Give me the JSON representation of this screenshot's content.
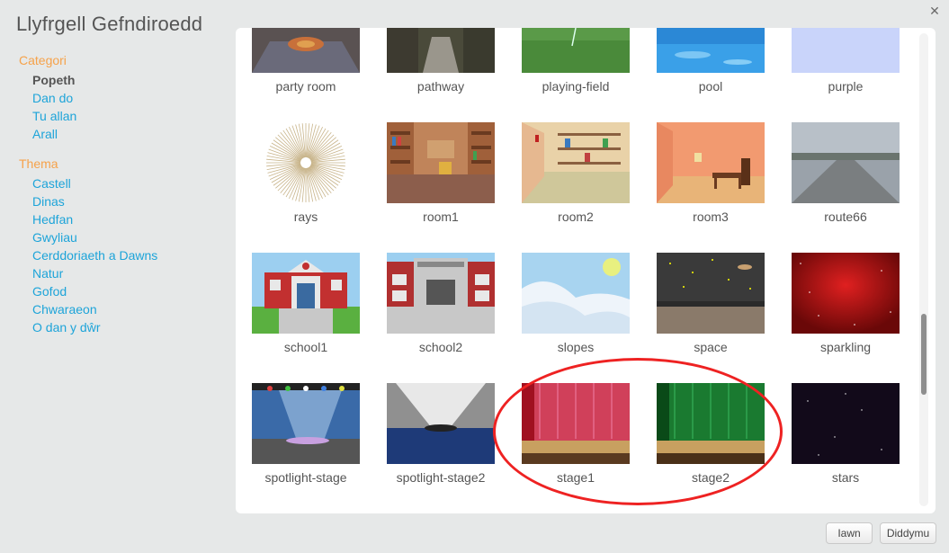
{
  "dialog": {
    "title": "Llyfrgell Gefndiroedd",
    "ok_label": "Iawn",
    "cancel_label": "Diddymu"
  },
  "sidebar": {
    "category_heading": "Categori",
    "categories": [
      "Popeth",
      "Dan do",
      "Tu allan",
      "Arall"
    ],
    "selected_category": "Popeth",
    "theme_heading": "Thema",
    "themes": [
      "Castell",
      "Dinas",
      "Hedfan",
      "Gwyliau",
      "Cerddoriaeth a Dawns",
      "Natur",
      "Gofod",
      "Chwaraeon",
      "O dan y dŵr"
    ]
  },
  "library": {
    "rows": [
      [
        "party room",
        "pathway",
        "playing-field",
        "pool",
        "purple"
      ],
      [
        "rays",
        "room1",
        "room2",
        "room3",
        "route66"
      ],
      [
        "school1",
        "school2",
        "slopes",
        "space",
        "sparkling"
      ],
      [
        "spotlight-stage",
        "spotlight-stage2",
        "stage1",
        "stage2",
        "stars"
      ]
    ]
  },
  "icons": {
    "close": "close-icon"
  },
  "colors": {
    "accent": "#1da4d9",
    "section": "#f6a24a",
    "highlight": "#e22222"
  }
}
